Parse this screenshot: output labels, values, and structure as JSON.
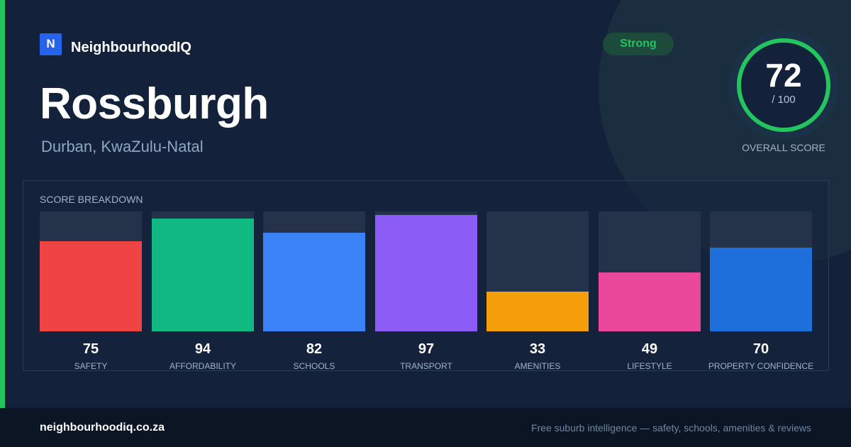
{
  "brand": {
    "logo_letter": "N",
    "name": "NeighbourhoodIQ"
  },
  "suburb": {
    "name": "Rossburgh",
    "location": "Durban, KwaZulu-Natal"
  },
  "status": {
    "label": "Strong",
    "color": "#22c55e"
  },
  "overall": {
    "score": "72",
    "max": "/ 100",
    "caption": "OVERALL SCORE",
    "value": 72,
    "ring_color": "#22c55e"
  },
  "breakdown": {
    "title": "SCORE BREAKDOWN",
    "max": 100,
    "items": [
      {
        "label": "SAFETY",
        "value": 75,
        "display": "75",
        "color": "#ef4444"
      },
      {
        "label": "AFFORDABILITY",
        "value": 94,
        "display": "94",
        "color": "#10b981"
      },
      {
        "label": "SCHOOLS",
        "value": 82,
        "display": "82",
        "color": "#3b82f6"
      },
      {
        "label": "TRANSPORT",
        "value": 97,
        "display": "97",
        "color": "#8b5cf6"
      },
      {
        "label": "AMENITIES",
        "value": 33,
        "display": "33",
        "color": "#f59e0b"
      },
      {
        "label": "LIFESTYLE",
        "value": 49,
        "display": "49",
        "color": "#ec4899"
      },
      {
        "label": "PROPERTY CONFIDENCE",
        "value": 70,
        "display": "70",
        "color": "#1d6fd9"
      }
    ]
  },
  "footer": {
    "domain": "neighbourhoodiq.co.za",
    "tagline": "Free suburb intelligence — safety, schools, amenities & reviews"
  }
}
